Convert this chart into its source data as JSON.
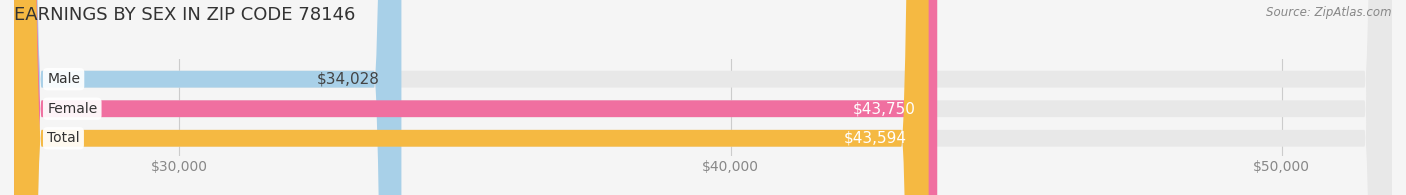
{
  "title": "EARNINGS BY SEX IN ZIP CODE 78146",
  "source": "Source: ZipAtlas.com",
  "categories": [
    "Male",
    "Female",
    "Total"
  ],
  "values": [
    34028,
    43750,
    43594
  ],
  "bar_colors": [
    "#a8d0e8",
    "#f06fa0",
    "#f5b942"
  ],
  "bar_labels": [
    "$34,028",
    "$43,750",
    "$43,594"
  ],
  "label_colors": [
    "#444444",
    "#ffffff",
    "#ffffff"
  ],
  "xmin": 27000,
  "xmax": 52000,
  "xticks": [
    30000,
    40000,
    50000
  ],
  "xtick_labels": [
    "$30,000",
    "$40,000",
    "$50,000"
  ],
  "background_color": "#f5f5f5",
  "bar_bg_color": "#e8e8e8",
  "title_fontsize": 13,
  "tick_fontsize": 10,
  "label_fontsize": 11
}
